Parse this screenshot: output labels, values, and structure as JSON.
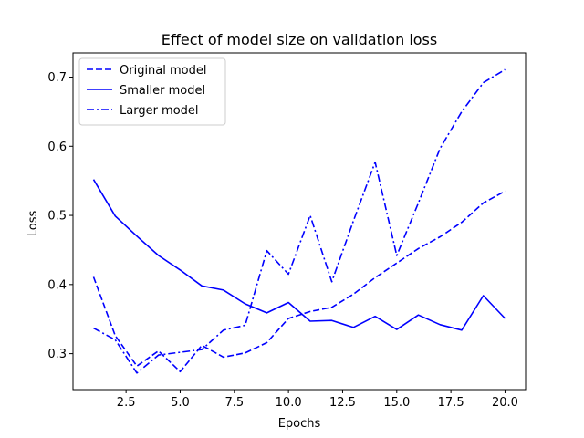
{
  "chart_data": {
    "type": "line",
    "title": "Effect of model size on validation loss",
    "xlabel": "Epochs",
    "ylabel": "Loss",
    "xlim": [
      0.05,
      20.95
    ],
    "ylim": [
      0.248,
      0.735
    ],
    "xticks": [
      2.5,
      5.0,
      7.5,
      10.0,
      12.5,
      15.0,
      17.5,
      20.0
    ],
    "xtick_labels": [
      "2.5",
      "5.0",
      "7.5",
      "10.0",
      "12.5",
      "15.0",
      "17.5",
      "20.0"
    ],
    "yticks": [
      0.3,
      0.4,
      0.5,
      0.6,
      0.7
    ],
    "ytick_labels": [
      "0.3",
      "0.4",
      "0.5",
      "0.6",
      "0.7"
    ],
    "grid": false,
    "legend_position": "upper-left",
    "x": [
      1,
      2,
      3,
      4,
      5,
      6,
      7,
      8,
      9,
      10,
      11,
      12,
      13,
      14,
      15,
      16,
      17,
      18,
      19,
      20
    ],
    "series": [
      {
        "name": "Original model",
        "style": "dashed",
        "color": "#0000ff",
        "values": [
          0.411,
          0.326,
          0.282,
          0.304,
          0.274,
          0.312,
          0.295,
          0.301,
          0.316,
          0.351,
          0.361,
          0.367,
          0.386,
          0.41,
          0.431,
          0.452,
          0.469,
          0.49,
          0.518,
          0.535
        ]
      },
      {
        "name": "Smaller model",
        "style": "solid",
        "color": "#0000ff",
        "values": [
          0.552,
          0.499,
          0.47,
          0.442,
          0.421,
          0.398,
          0.392,
          0.372,
          0.359,
          0.374,
          0.347,
          0.348,
          0.338,
          0.354,
          0.335,
          0.356,
          0.342,
          0.334,
          0.384,
          0.351
        ]
      },
      {
        "name": "Larger model",
        "style": "dashdot",
        "color": "#0000ff",
        "values": [
          0.337,
          0.32,
          0.272,
          0.298,
          0.302,
          0.306,
          0.334,
          0.341,
          0.449,
          0.415,
          0.5,
          0.404,
          0.492,
          0.577,
          0.442,
          0.518,
          0.597,
          0.65,
          0.692,
          0.711
        ]
      }
    ]
  }
}
